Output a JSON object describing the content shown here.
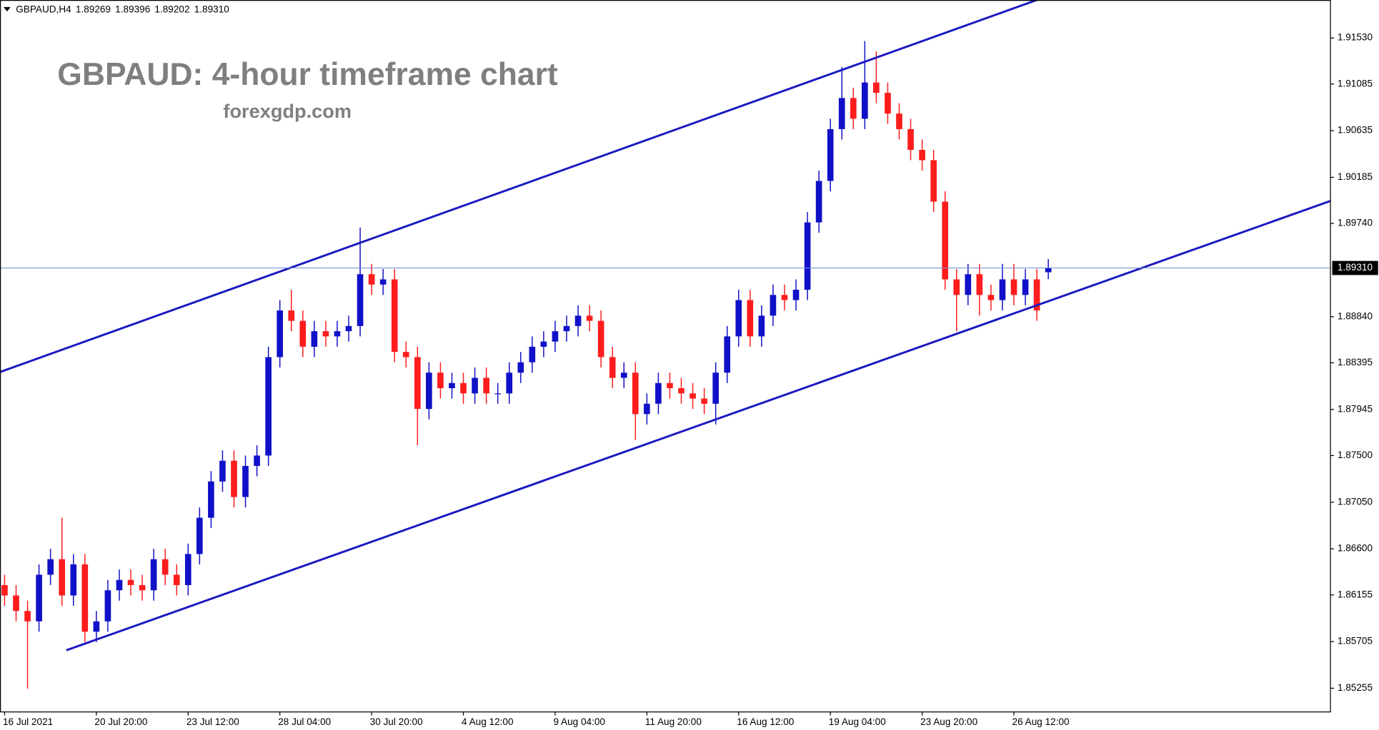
{
  "chart_data": {
    "type": "candlestick",
    "symbol": "GBPAUD,H4",
    "quote": [
      "1.89269",
      "1.89396",
      "1.89202",
      "1.89310"
    ],
    "title": "GBPAUD: 4-hour timeframe chart",
    "subtitle": "forexgdp.com",
    "grid": false,
    "bull_color": "#1010c8",
    "bear_color": "#ff1c1c",
    "xlim": [
      -0.4,
      115.6
    ],
    "xticks": [
      {
        "value": 0,
        "label": "16 Jul 2021"
      },
      {
        "value": 8,
        "label": "20 Jul 20:00"
      },
      {
        "value": 16,
        "label": "23 Jul 12:00"
      },
      {
        "value": 24,
        "label": "28 Jul 04:00"
      },
      {
        "value": 32,
        "label": "30 Jul 20:00"
      },
      {
        "value": 40,
        "label": "4 Aug 12:00"
      },
      {
        "value": 48,
        "label": "9 Aug 04:00"
      },
      {
        "value": 56,
        "label": "11 Aug 20:00"
      },
      {
        "value": 64,
        "label": "16 Aug 12:00"
      },
      {
        "value": 72,
        "label": "19 Aug 04:00"
      },
      {
        "value": 80,
        "label": "23 Aug 20:00"
      },
      {
        "value": 88,
        "label": "26 Aug 12:00"
      }
    ],
    "ylim": [
      1.85026,
      1.91896
    ],
    "yticks": [
      {
        "value": 1.9153,
        "label": "1.91530"
      },
      1.91085,
      1.90635,
      1.90185,
      {
        "value": 1.8974,
        "label": "1.89740"
      },
      {
        "value": 1.8884,
        "label": "1.88840"
      },
      1.88395,
      1.87945,
      {
        "value": 1.875,
        "label": "1.87500"
      },
      {
        "value": 1.8705,
        "label": "1.87050"
      },
      {
        "value": 1.866,
        "label": "1.86600"
      },
      1.86155,
      1.85705,
      1.85255
    ],
    "price_line": {
      "value": 1.8931,
      "label": "1.89310",
      "color": "#7090d0"
    },
    "open": [
      1.8625,
      1.8615,
      1.86,
      1.859,
      1.8635,
      1.865,
      1.8615,
      1.8645,
      1.858,
      1.859,
      1.862,
      1.863,
      1.8625,
      1.862,
      1.865,
      1.8635,
      1.8625,
      1.8655,
      1.869,
      1.8725,
      1.8745,
      1.871,
      1.874,
      1.875,
      1.8845,
      1.889,
      1.888,
      1.8855,
      1.887,
      1.8865,
      1.887,
      1.8875,
      1.8925,
      1.8915,
      1.892,
      1.885,
      1.8845,
      1.8795,
      1.883,
      1.8815,
      1.882,
      1.881,
      1.8825,
      1.881,
      1.881,
      1.883,
      1.884,
      1.8855,
      1.886,
      1.887,
      1.8875,
      1.8885,
      1.888,
      1.8845,
      1.8825,
      1.883,
      1.879,
      1.88,
      1.882,
      1.8815,
      1.881,
      1.8805,
      1.88,
      1.883,
      1.8865,
      1.89,
      1.8865,
      1.8885,
      1.8905,
      1.89,
      1.891,
      1.8975,
      1.9015,
      1.9065,
      1.9095,
      1.9075,
      1.911,
      1.91,
      1.908,
      1.9065,
      1.9045,
      1.9035,
      1.8995,
      1.892,
      1.8905,
      1.8925,
      1.8905,
      1.89,
      1.892,
      1.8905,
      1.892,
      1.89269
    ],
    "high": [
      1.8635,
      1.8625,
      1.861,
      1.8645,
      1.866,
      1.869,
      1.8655,
      1.8655,
      1.86,
      1.863,
      1.864,
      1.864,
      1.8635,
      1.866,
      1.866,
      1.8645,
      1.8665,
      1.87,
      1.8735,
      1.8755,
      1.8755,
      1.875,
      1.876,
      1.8855,
      1.89,
      1.891,
      1.889,
      1.888,
      1.888,
      1.888,
      1.8885,
      1.897,
      1.8935,
      1.893,
      1.893,
      1.886,
      1.8855,
      1.884,
      1.884,
      1.883,
      1.883,
      1.8835,
      1.8835,
      1.882,
      1.884,
      1.885,
      1.8865,
      1.887,
      1.888,
      1.8885,
      1.8895,
      1.8895,
      1.889,
      1.8855,
      1.884,
      1.884,
      1.881,
      1.883,
      1.883,
      1.8825,
      1.882,
      1.8815,
      1.884,
      1.8875,
      1.891,
      1.891,
      1.8895,
      1.8915,
      1.8915,
      1.892,
      1.8985,
      1.9025,
      1.9075,
      1.9125,
      1.9105,
      1.915,
      1.914,
      1.911,
      1.909,
      1.9075,
      1.9055,
      1.9045,
      1.9005,
      1.893,
      1.8935,
      1.8935,
      1.8915,
      1.8935,
      1.8935,
      1.893,
      1.893,
      1.89396
    ],
    "low": [
      1.8605,
      1.859,
      1.8525,
      1.858,
      1.8625,
      1.8605,
      1.8605,
      1.857,
      1.857,
      1.858,
      1.861,
      1.8615,
      1.861,
      1.861,
      1.8625,
      1.8615,
      1.8615,
      1.8645,
      1.868,
      1.8715,
      1.87,
      1.87,
      1.873,
      1.874,
      1.8835,
      1.887,
      1.8845,
      1.8845,
      1.8855,
      1.8855,
      1.886,
      1.8865,
      1.8905,
      1.8905,
      1.884,
      1.8835,
      1.876,
      1.8785,
      1.8805,
      1.8805,
      1.88,
      1.88,
      1.88,
      1.88,
      1.88,
      1.882,
      1.883,
      1.8845,
      1.885,
      1.886,
      1.8865,
      1.887,
      1.8835,
      1.8815,
      1.8815,
      1.8765,
      1.878,
      1.879,
      1.8805,
      1.88,
      1.8795,
      1.879,
      1.878,
      1.882,
      1.8855,
      1.8855,
      1.8855,
      1.8875,
      1.889,
      1.889,
      1.89,
      1.8965,
      1.9005,
      1.9055,
      1.9065,
      1.9065,
      1.909,
      1.907,
      1.9055,
      1.9035,
      1.9025,
      1.8985,
      1.891,
      1.887,
      1.8895,
      1.8885,
      1.889,
      1.889,
      1.8895,
      1.8895,
      1.888,
      1.89202
    ],
    "close": [
      1.8615,
      1.86,
      1.859,
      1.8635,
      1.865,
      1.8615,
      1.8645,
      1.858,
      1.859,
      1.862,
      1.863,
      1.8625,
      1.862,
      1.865,
      1.8635,
      1.8625,
      1.8655,
      1.869,
      1.8725,
      1.8745,
      1.871,
      1.874,
      1.875,
      1.8845,
      1.889,
      1.888,
      1.8855,
      1.887,
      1.8865,
      1.887,
      1.8875,
      1.8925,
      1.8915,
      1.892,
      1.885,
      1.8845,
      1.8795,
      1.883,
      1.8815,
      1.882,
      1.881,
      1.8825,
      1.881,
      1.881,
      1.883,
      1.884,
      1.8855,
      1.886,
      1.887,
      1.8875,
      1.8885,
      1.888,
      1.8845,
      1.8825,
      1.883,
      1.879,
      1.88,
      1.882,
      1.8815,
      1.881,
      1.8805,
      1.88,
      1.883,
      1.8865,
      1.89,
      1.8865,
      1.8885,
      1.8905,
      1.89,
      1.891,
      1.8975,
      1.9015,
      1.9065,
      1.9095,
      1.9075,
      1.911,
      1.91,
      1.908,
      1.9065,
      1.9045,
      1.9035,
      1.8995,
      1.892,
      1.8905,
      1.8925,
      1.8905,
      1.89,
      1.892,
      1.8905,
      1.892,
      1.889,
      1.8931
    ],
    "trendlines": [
      {
        "color": "#1a1ac0",
        "x": [
          -0.38,
          90.0
        ],
        "y": [
          1.88307,
          1.91896
        ]
      },
      {
        "color": "#1a1ac0",
        "x": [
          5.38,
          115.6
        ],
        "y": [
          1.85621,
          1.89957
        ]
      }
    ]
  }
}
